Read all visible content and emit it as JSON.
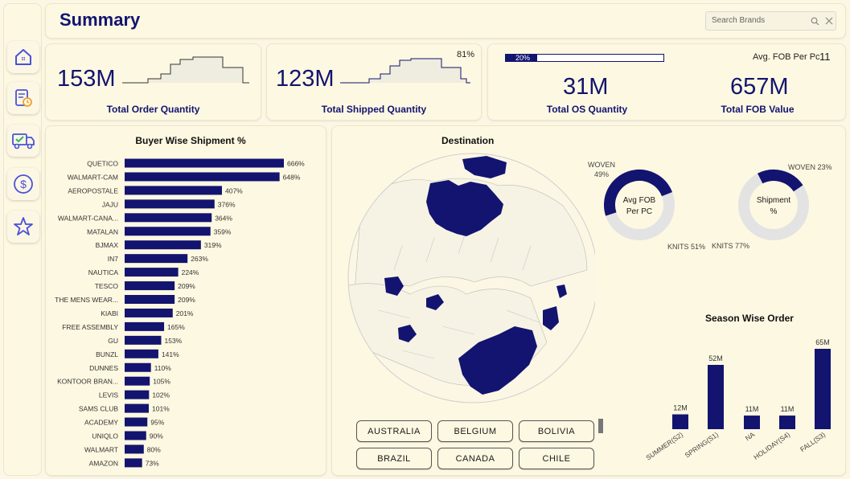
{
  "header": {
    "title": "Summary",
    "search_placeholder": "Search Brands"
  },
  "sidebar": {
    "items": [
      "home-icon",
      "report-clock-icon",
      "delivery-truck-icon",
      "dollar-icon",
      "star-icon"
    ]
  },
  "kpis": {
    "order": {
      "value": "153M",
      "label": "Total Order Quantity"
    },
    "shipped": {
      "value": "123M",
      "label": "Total Shipped Quantity",
      "pct": "81%"
    },
    "os": {
      "value": "31M",
      "label": "Total OS Quantity",
      "progress_label": "20%",
      "progress": 0.2
    },
    "fob_value": {
      "value": "657M",
      "label": "Total FOB Value"
    },
    "avg_fob": {
      "label": "Avg. FOB Per Pc",
      "value": "11"
    }
  },
  "buyer_chart": {
    "title": "Buyer Wise Shipment %",
    "chart_data": {
      "type": "bar",
      "categories": [
        "QUETICO",
        "WALMART-CAM",
        "AEROPOSTALE",
        "JAJU",
        "WALMART-CANA...",
        "MATALAN",
        "BJMAX",
        "IN7",
        "NAUTICA",
        "TESCO",
        "THE MENS WEAR...",
        "KIABI",
        "FREE ASSEMBLY",
        "GU",
        "BUNZL",
        "DUNNES",
        "KONTOOR BRAN...",
        "LEVIS",
        "SAMS CLUB",
        "ACADEMY",
        "UNIQLO",
        "WALMART",
        "AMAZON"
      ],
      "values": [
        666,
        648,
        407,
        376,
        364,
        359,
        319,
        263,
        224,
        209,
        209,
        201,
        165,
        153,
        141,
        110,
        105,
        102,
        101,
        95,
        90,
        80,
        73
      ],
      "labels": [
        "666%",
        "648%",
        "407%",
        "376%",
        "364%",
        "359%",
        "319%",
        "263%",
        "224%",
        "209%",
        "209%",
        "201%",
        "165%",
        "153%",
        "141%",
        "110%",
        "105%",
        "102%",
        "101%",
        "95%",
        "90%",
        "80%",
        "73%"
      ]
    }
  },
  "destination": {
    "title": "Destination",
    "countries": [
      "AUSTRALIA",
      "BELGIUM",
      "BOLIVIA",
      "BRAZIL",
      "CANADA",
      "CHILE"
    ]
  },
  "donut_fob": {
    "center": [
      "Avg FOB",
      "Per PC"
    ],
    "woven_label": [
      "WOVEN",
      "49%"
    ],
    "knits_label": "KNITS 51%",
    "chart_data": {
      "type": "pie",
      "categories": [
        "WOVEN",
        "KNITS"
      ],
      "values": [
        49,
        51
      ]
    }
  },
  "donut_ship": {
    "center": [
      "Shipment",
      "%"
    ],
    "woven_label": "WOVEN 23%",
    "knits_label": "KNITS 77%",
    "chart_data": {
      "type": "pie",
      "categories": [
        "WOVEN",
        "KNITS"
      ],
      "values": [
        23,
        77
      ]
    }
  },
  "season_chart": {
    "title": "Season Wise Order",
    "chart_data": {
      "type": "bar",
      "categories": [
        "SUMMER(S2)",
        "SPRING(S1)",
        "NA",
        "HOLIDAY(S4)",
        "FALL(S3)"
      ],
      "values": [
        12,
        52,
        11,
        11,
        65
      ],
      "labels": [
        "12M",
        "52M",
        "11M",
        "11M",
        "65M"
      ]
    }
  },
  "colors": {
    "accent": "#121470",
    "panel": "#fdf8e1",
    "bg": "#fbf7e4",
    "track": "#e3e3e3"
  }
}
